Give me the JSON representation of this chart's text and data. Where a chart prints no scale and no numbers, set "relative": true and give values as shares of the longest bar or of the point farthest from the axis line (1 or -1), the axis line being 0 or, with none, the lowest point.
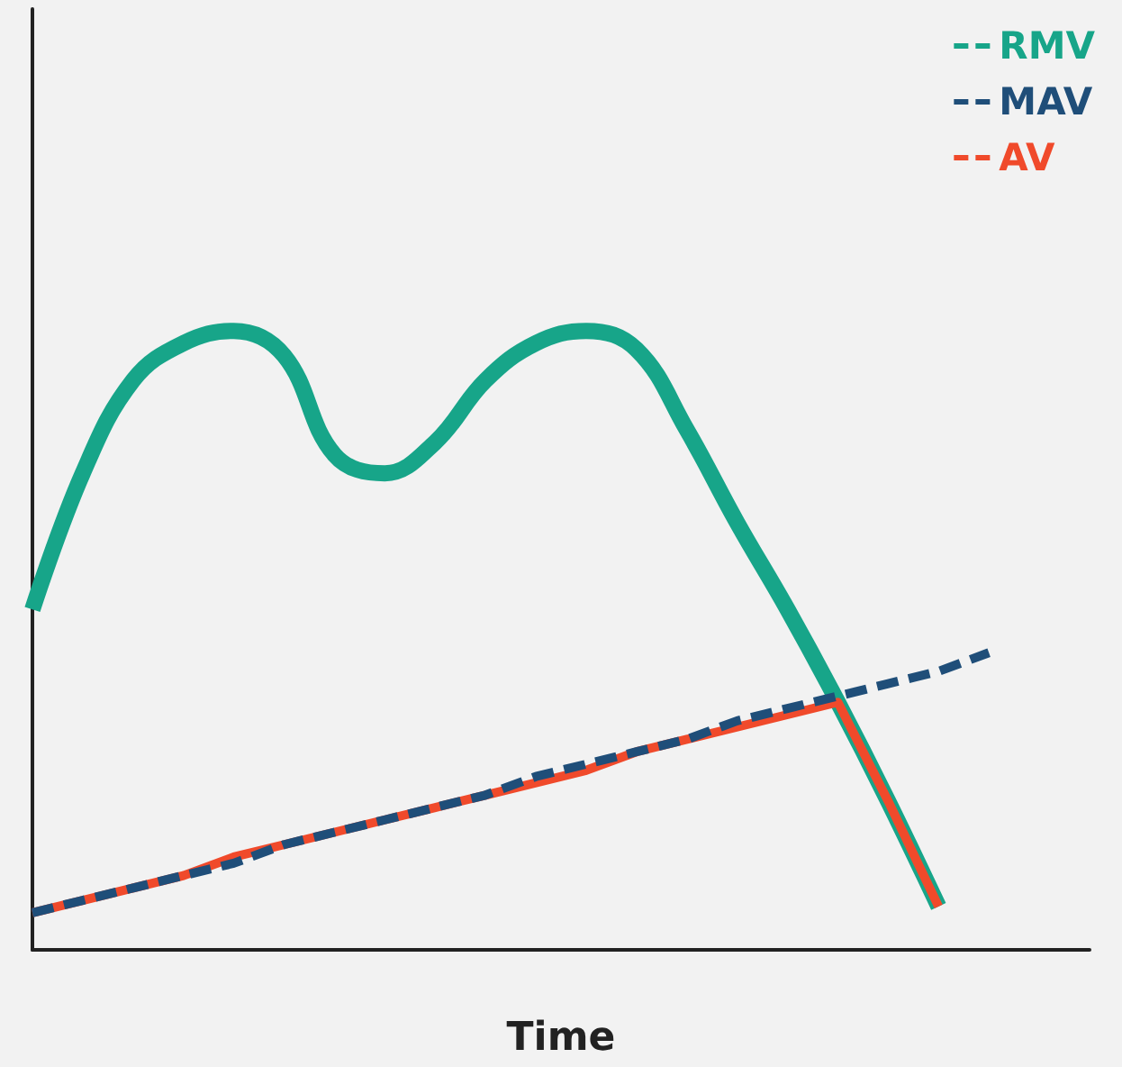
{
  "chart_data": {
    "type": "line",
    "relative": true,
    "xlabel": "Time",
    "categories": [
      null,
      null,
      null,
      null,
      null,
      null,
      null,
      null,
      null,
      null,
      null,
      null,
      null,
      null,
      null,
      null,
      null,
      null,
      null,
      null
    ],
    "series": [
      {
        "name": "RMV",
        "color": "#17a589",
        "line_style": "solid",
        "values": [
          0.55,
          0.77,
          0.92,
          0.98,
          1.0,
          0.96,
          0.8,
          0.77,
          0.82,
          0.92,
          0.98,
          1.0,
          0.97,
          0.84,
          0.69,
          0.55,
          0.4,
          0.24,
          0.07,
          null
        ]
      },
      {
        "name": "MAV",
        "color": "#1f4e79",
        "line_style": "dashed",
        "values": [
          0.06,
          0.08,
          0.1,
          0.12,
          0.14,
          0.17,
          0.19,
          0.21,
          0.23,
          0.25,
          0.28,
          0.3,
          0.32,
          0.34,
          0.37,
          0.39,
          0.41,
          0.43,
          0.45,
          0.48
        ]
      },
      {
        "name": "AV",
        "color": "#f04a2b",
        "line_style": "solid",
        "values": [
          0.06,
          0.08,
          0.1,
          0.12,
          0.15,
          0.17,
          0.19,
          0.21,
          0.23,
          0.25,
          0.27,
          0.29,
          0.32,
          0.34,
          0.36,
          0.38,
          0.4,
          0.24,
          0.07,
          null
        ]
      }
    ],
    "legend": "top right",
    "marker": "none",
    "grid": false
  }
}
